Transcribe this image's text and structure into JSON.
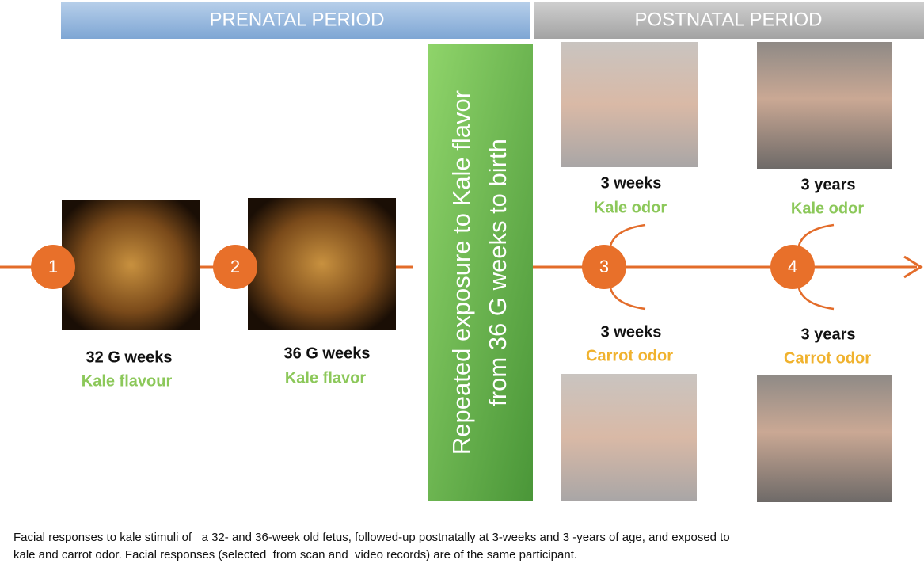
{
  "header": {
    "prenatal": "PRENATAL PERIOD",
    "postnatal": "POSTNATAL PERIOD"
  },
  "banner": {
    "lines": [
      "Repeated exposure to Kale flavor",
      "from 36 G weeks to birth"
    ]
  },
  "nodes": [
    {
      "label": "1"
    },
    {
      "label": "2"
    },
    {
      "label": "3"
    },
    {
      "label": "4"
    }
  ],
  "stages": [
    {
      "age": "32 G weeks",
      "stimulus": "Kale flavour"
    },
    {
      "age": "36 G weeks",
      "stimulus": "Kale flavor"
    },
    {
      "age": "3 weeks",
      "stimulus": "Kale odor"
    },
    {
      "age": "3 years",
      "stimulus": "Kale odor"
    },
    {
      "age": "3 weeks",
      "stimulus": "Carrot odor"
    },
    {
      "age": "3 years",
      "stimulus": "Carrot odor"
    }
  ],
  "caption": [
    "Facial responses to kale stimuli of   a 32- and 36-week old fetus, followed-up postnatally at 3-weeks and 3 -years of age, and exposed to",
    "kale and carrot odor. Facial responses (selected  from scan and  video records) are of the same participant."
  ]
}
